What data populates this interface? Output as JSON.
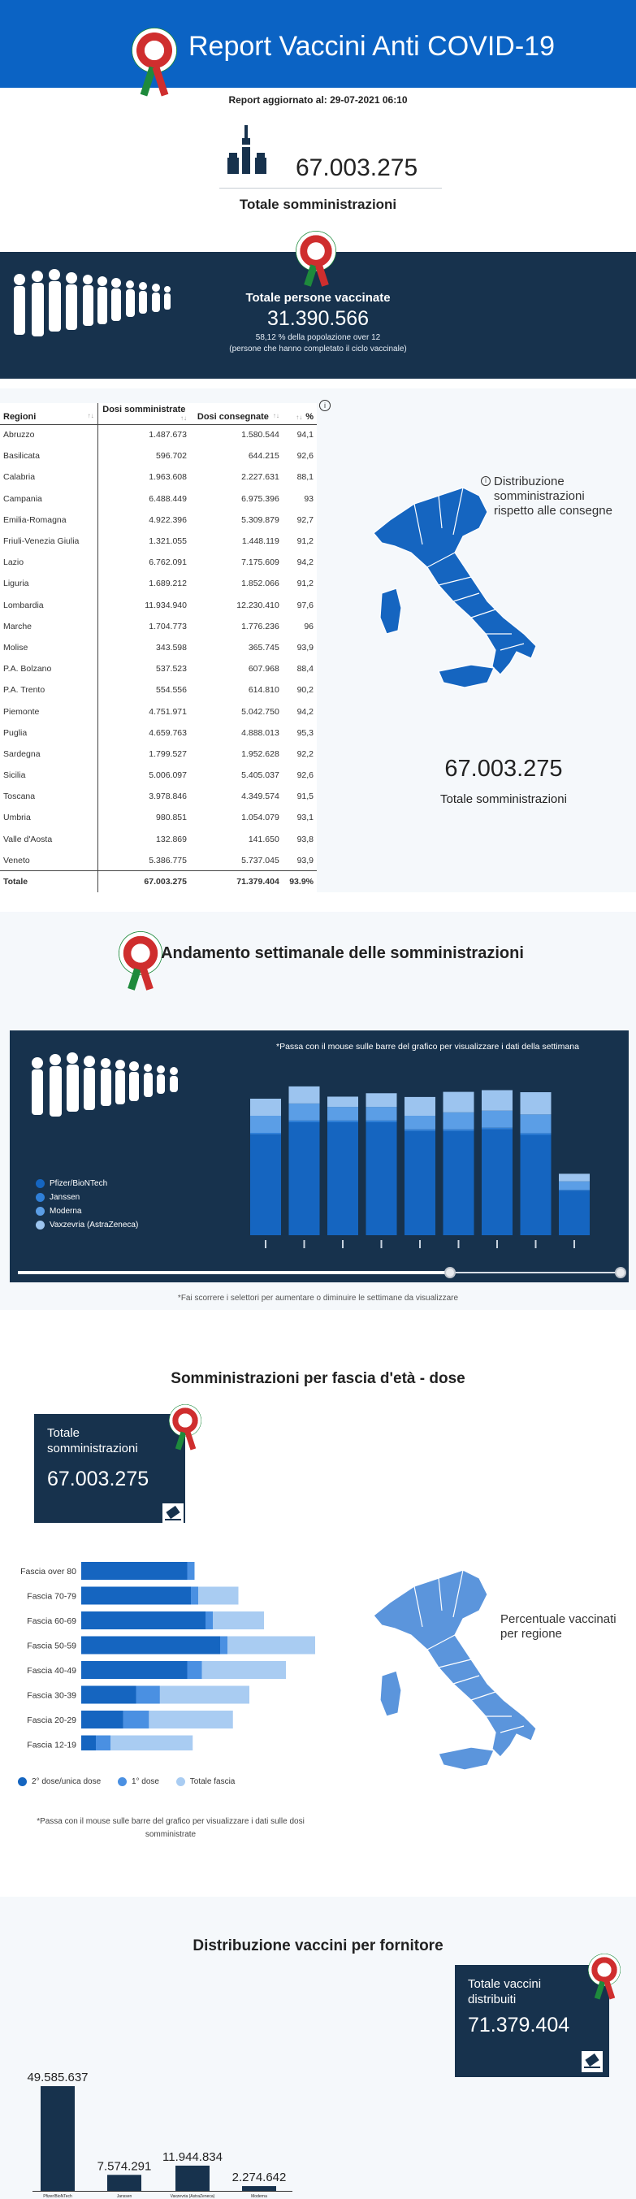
{
  "header": {
    "title": "Report Vaccini Anti COVID-19"
  },
  "updated": "Report aggiornato al: 29-07-2021 06:10",
  "total": {
    "value": "67.003.275",
    "label": "Totale somministrazioni"
  },
  "vaccinated": {
    "title": "Totale persone vaccinate",
    "value": "31.390.566",
    "note1": "58,12 % della popolazione over 12",
    "note2": "(persone che hanno completato il ciclo vaccinale)"
  },
  "table": {
    "headers": [
      "Regioni",
      "Dosi somministrate",
      "Dosi consegnate",
      "%"
    ],
    "rows": [
      [
        "Abruzzo",
        "1.487.673",
        "1.580.544",
        "94,1"
      ],
      [
        "Basilicata",
        "596.702",
        "644.215",
        "92,6"
      ],
      [
        "Calabria",
        "1.963.608",
        "2.227.631",
        "88,1"
      ],
      [
        "Campania",
        "6.488.449",
        "6.975.396",
        "93"
      ],
      [
        "Emilia-Romagna",
        "4.922.396",
        "5.309.879",
        "92,7"
      ],
      [
        "Friuli-Venezia Giulia",
        "1.321.055",
        "1.448.119",
        "91,2"
      ],
      [
        "Lazio",
        "6.762.091",
        "7.175.609",
        "94,2"
      ],
      [
        "Liguria",
        "1.689.212",
        "1.852.066",
        "91,2"
      ],
      [
        "Lombardia",
        "11.934.940",
        "12.230.410",
        "97,6"
      ],
      [
        "Marche",
        "1.704.773",
        "1.776.236",
        "96"
      ],
      [
        "Molise",
        "343.598",
        "365.745",
        "93,9"
      ],
      [
        "P.A. Bolzano",
        "537.523",
        "607.968",
        "88,4"
      ],
      [
        "P.A. Trento",
        "554.556",
        "614.810",
        "90,2"
      ],
      [
        "Piemonte",
        "4.751.971",
        "5.042.750",
        "94,2"
      ],
      [
        "Puglia",
        "4.659.763",
        "4.888.013",
        "95,3"
      ],
      [
        "Sardegna",
        "1.799.527",
        "1.952.628",
        "92,2"
      ],
      [
        "Sicilia",
        "5.006.097",
        "5.405.037",
        "92,6"
      ],
      [
        "Toscana",
        "3.978.846",
        "4.349.574",
        "91,5"
      ],
      [
        "Umbria",
        "980.851",
        "1.054.079",
        "93,1"
      ],
      [
        "Valle d'Aosta",
        "132.869",
        "141.650",
        "93,8"
      ],
      [
        "Veneto",
        "5.386.775",
        "5.737.045",
        "93,9"
      ]
    ],
    "total": [
      "Totale",
      "67.003.275",
      "71.379.404",
      "93.9%"
    ]
  },
  "map1": {
    "label": "Distribuzione somministrazioni rispetto alle consegne",
    "total_value": "67.003.275",
    "total_label": "Totale somministrazioni",
    "color": "#0b63c4"
  },
  "weekly": {
    "title": "Andamento settimanale delle somministrazioni",
    "hint": "*Passa con il mouse sulle barre del grafico per visualizzare i dati della settimana",
    "note": "*Fai scorrere i selettori per aumentare o diminuire le settimane da visualizzare",
    "legend": [
      {
        "name": "Pfizer/BioNTech",
        "color": "#1565c0"
      },
      {
        "name": "Janssen",
        "color": "#2f7fd8"
      },
      {
        "name": "Moderna",
        "color": "#5b9ee6"
      },
      {
        "name": "Vaxzevria (AstraZeneca)",
        "color": "#9cc4ef"
      }
    ]
  },
  "chart_data": [
    {
      "type": "bar",
      "stacked": true,
      "series": [
        {
          "name": "Pfizer/BioNTech",
          "values": [
            2.95,
            3.31,
            3.31,
            3.31,
            3.05,
            3.05,
            3.1,
            2.94,
            1.3
          ]
        },
        {
          "name": "Janssen",
          "values": [
            0.05,
            0.05,
            0.05,
            0.05,
            0.05,
            0.05,
            0.05,
            0.05,
            0.03
          ]
        },
        {
          "name": "Moderna",
          "values": [
            0.5,
            0.5,
            0.4,
            0.4,
            0.4,
            0.5,
            0.5,
            0.55,
            0.25
          ]
        },
        {
          "name": "Vaxzevria (AstraZeneca)",
          "values": [
            0.5,
            0.5,
            0.3,
            0.4,
            0.55,
            0.6,
            0.6,
            0.65,
            0.22
          ]
        }
      ],
      "x_tick_labels_visible": false
    },
    {
      "type": "bar",
      "orientation": "horizontal",
      "categories": [
        "Fascia over 80",
        "Fascia 70-79",
        "Fascia 60-69",
        "Fascia 50-59",
        "Fascia 40-49",
        "Fascia 30-39",
        "Fascia 20-29",
        "Fascia 12-19"
      ],
      "series": [
        {
          "name": "2° dose/unica dose",
          "values": [
            0.58,
            0.6,
            0.68,
            0.76,
            0.58,
            0.3,
            0.23,
            0.08
          ]
        },
        {
          "name": "1° dose",
          "values": [
            0.04,
            0.04,
            0.04,
            0.04,
            0.08,
            0.13,
            0.14,
            0.08
          ]
        },
        {
          "name": "Totale fascia",
          "values": [
            0.62,
            0.86,
            1.0,
            1.28,
            1.12,
            0.92,
            0.83,
            0.61
          ]
        }
      ]
    },
    {
      "type": "bar",
      "categories": [
        "Pfizer/BioNTech",
        "Janssen",
        "Vaxzevria (AstraZeneca)",
        "Moderna"
      ],
      "values": [
        49585637,
        7574291,
        11944834,
        2274642
      ],
      "data_labels": [
        "49.585.637",
        "7.574.291",
        "11.944.834",
        "2.274.642"
      ]
    }
  ],
  "age": {
    "title": "Somministrazioni per fascia d'età - dose",
    "box_label": "Totale somministrazioni",
    "box_value": "67.003.275",
    "map_label": "Percentuale vaccinati per regione",
    "legend": [
      {
        "name": "2° dose/unica dose",
        "color": "#1565c0"
      },
      {
        "name": "1° dose",
        "color": "#4a90e2"
      },
      {
        "name": "Totale fascia",
        "color": "#a9ccf2"
      }
    ],
    "note": "*Passa con il mouse sulle barre del grafico per visualizzare i dati sulle dosi somministrate"
  },
  "distribution": {
    "title": "Distribuzione vaccini per fornitore",
    "box_label": "Totale vaccini distribuiti",
    "box_value": "71.379.404"
  }
}
